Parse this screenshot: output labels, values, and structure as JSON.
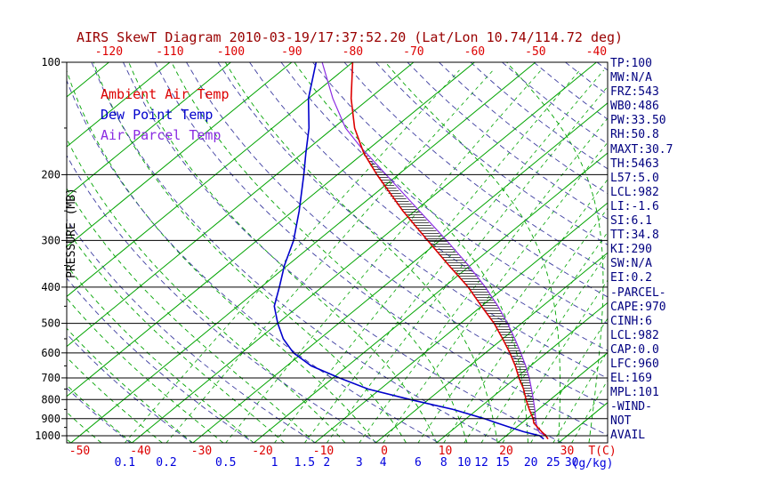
{
  "colors": {
    "title": "#990000",
    "temp_axis_labels": "#dd0000",
    "ambient": "#dd0000",
    "dew_point": "#0000cc",
    "parcel": "#8a2be2",
    "isotherm": "#00a300",
    "moist_adiabat": "#00a300",
    "mixing_ratio_line": "#00a300",
    "mixing_labels": "#0000dd",
    "dry_adiabat": "#3d3da0",
    "pressure_lines": "#000000",
    "indices_text": "#000080",
    "hatch": "#222222"
  },
  "legend": {
    "items": [
      {
        "label": "Ambient Air Temp"
      },
      {
        "label": "Dew Point Temp"
      },
      {
        "label": "Air Parcel Temp"
      }
    ]
  },
  "axes": {
    "pressure_label": "PRESSURE (MB)",
    "temp_unit": "T(C)",
    "mixing_unit": "(g/kg)"
  },
  "indices": [
    "TP:100",
    "MW:N/A",
    "FRZ:543",
    "WB0:486",
    "PW:33.50",
    "RH:50.8",
    "MAXT:30.7",
    "TH:5463",
    "L57:5.0",
    "LCL:982",
    "LI:-1.6",
    "SI:6.1",
    "TT:34.8",
    "KI:290",
    "SW:N/A",
    "EI:0.2",
    "-PARCEL-",
    "CAPE:970",
    "CINH:6",
    "LCL:982",
    "CAP:0.0",
    "LFC:960",
    "EL:169",
    "MPL:101",
    "-WIND-",
    "NOT",
    "AVAIL"
  ],
  "chart_data": {
    "type": "skewt",
    "title": "AIRS SkewT Diagram 2010-03-19/17:37:52.20 (Lat/Lon 10.74/114.72 deg)",
    "xlabel": "T(C)",
    "ylabel": "PRESSURE (MB)",
    "pressure_ticks": [
      100,
      200,
      300,
      400,
      500,
      600,
      700,
      800,
      900,
      1000
    ],
    "pressure_range": [
      100,
      1045
    ],
    "top_temp_labels_c": [
      -120,
      -110,
      -100,
      -90,
      -80,
      -70,
      -60,
      -50,
      -40
    ],
    "bottom_temp_labels_c": [
      -50,
      -40,
      -30,
      -20,
      -10,
      0,
      10,
      20,
      30
    ],
    "mixing_ratio_lines_gkg": [
      0.1,
      0.2,
      0.5,
      1,
      1.5,
      2,
      3,
      4,
      6,
      8,
      10,
      12,
      15,
      20,
      25,
      30
    ],
    "isotherms_c": {
      "min": -130,
      "max": 30,
      "step": 10
    },
    "dry_adiabats_theta_k": {
      "min": 220,
      "max": 460,
      "step": 10
    },
    "moist_adiabats_start_c": {
      "min": -60,
      "max": 40,
      "step": 5
    },
    "cape_region_hpa": {
      "from": 960,
      "to": 169
    },
    "series": {
      "ambient_temp_c": [
        [
          1020,
          27.5
        ],
        [
          1000,
          26.5
        ],
        [
          975,
          25
        ],
        [
          950,
          23.5
        ],
        [
          925,
          22
        ],
        [
          900,
          21
        ],
        [
          850,
          18.5
        ],
        [
          800,
          16
        ],
        [
          750,
          13.5
        ],
        [
          700,
          10.5
        ],
        [
          650,
          7.5
        ],
        [
          600,
          4
        ],
        [
          550,
          0
        ],
        [
          500,
          -4.5
        ],
        [
          450,
          -10
        ],
        [
          400,
          -16
        ],
        [
          350,
          -23.5
        ],
        [
          300,
          -32
        ],
        [
          250,
          -42
        ],
        [
          200,
          -53.5
        ],
        [
          175,
          -60
        ],
        [
          150,
          -66.5
        ],
        [
          125,
          -73
        ],
        [
          100,
          -80
        ]
      ],
      "dew_point_c": [
        [
          1020,
          26.8
        ],
        [
          1000,
          25.5
        ],
        [
          975,
          22
        ],
        [
          950,
          19
        ],
        [
          925,
          16
        ],
        [
          900,
          13
        ],
        [
          850,
          6
        ],
        [
          800,
          -3
        ],
        [
          750,
          -12
        ],
        [
          700,
          -19
        ],
        [
          650,
          -26
        ],
        [
          600,
          -31.5
        ],
        [
          550,
          -36
        ],
        [
          500,
          -40
        ],
        [
          450,
          -44
        ],
        [
          400,
          -47
        ],
        [
          350,
          -50.5
        ],
        [
          300,
          -54
        ],
        [
          250,
          -59
        ],
        [
          200,
          -65.5
        ],
        [
          175,
          -69.5
        ],
        [
          150,
          -74
        ],
        [
          125,
          -80
        ],
        [
          100,
          -86
        ]
      ],
      "parcel_temp_c": [
        [
          1020,
          27.5
        ],
        [
          1000,
          26.5
        ],
        [
          982,
          24.9
        ],
        [
          960,
          23.8
        ],
        [
          950,
          23.4
        ],
        [
          925,
          22.4
        ],
        [
          900,
          21.4
        ],
        [
          850,
          19.4
        ],
        [
          800,
          17.2
        ],
        [
          750,
          14.8
        ],
        [
          700,
          12.2
        ],
        [
          650,
          9.2
        ],
        [
          600,
          5.8
        ],
        [
          550,
          2.0
        ],
        [
          500,
          -2.3
        ],
        [
          450,
          -7.3
        ],
        [
          400,
          -13.2
        ],
        [
          350,
          -20.3
        ],
        [
          300,
          -28.9
        ],
        [
          250,
          -39.3
        ],
        [
          200,
          -52.0
        ],
        [
          169,
          -61.6
        ],
        [
          150,
          -68
        ],
        [
          125,
          -76
        ],
        [
          100,
          -85
        ]
      ]
    }
  }
}
